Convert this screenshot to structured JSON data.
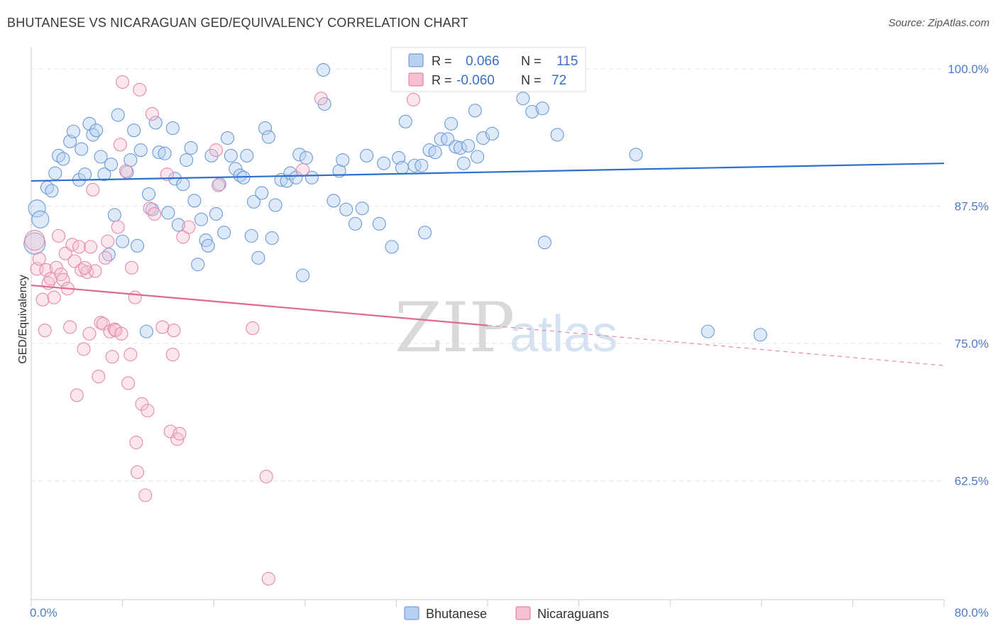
{
  "title": "BHUTANESE VS NICARAGUAN GED/EQUIVALENCY CORRELATION CHART",
  "source": "Source: ZipAtlas.com",
  "watermark": {
    "zip": "ZIP",
    "atlas": "atlas"
  },
  "colors": {
    "blue": "#5b8fd6",
    "blue_fill": "#b9d0f0",
    "pink": "#e07096",
    "pink_fill": "#f6c0d2"
  },
  "legend": {
    "rows": [
      {
        "r_label": "R =",
        "r_value": "0.066",
        "n_label": "N =",
        "n_value": "115"
      },
      {
        "r_label": "R =",
        "r_value": "-0.060",
        "n_label": "N =",
        "n_value": "72"
      }
    ],
    "bottom": [
      "Bhutanese",
      "Nicaraguans"
    ]
  },
  "chart_data": {
    "type": "scatter",
    "title": "BHUTANESE VS NICARAGUAN GED/EQUIVALENCY CORRELATION CHART",
    "xlabel": "",
    "ylabel": "GED/Equivalency",
    "xlim": [
      0,
      80
    ],
    "ylim": [
      51.7,
      102
    ],
    "x_tick_labels": [
      "0.0%",
      "80.0%"
    ],
    "y_ticks": [
      62.5,
      75.0,
      87.5,
      100.0
    ],
    "y_tick_labels": [
      "62.5%",
      "75.0%",
      "87.5%",
      "100.0%"
    ],
    "grid": true,
    "legend_position": "top-center",
    "series": [
      {
        "name": "Bhutanese",
        "r": 0.066,
        "n": 115,
        "trend": {
          "x": [
            0,
            80
          ],
          "y": [
            89.8,
            91.4
          ]
        },
        "points": [
          [
            0.3,
            84.1
          ],
          [
            0.5,
            87.3
          ],
          [
            0.8,
            86.3
          ],
          [
            1.4,
            89.2
          ],
          [
            1.8,
            88.9
          ],
          [
            2.1,
            90.5
          ],
          [
            2.4,
            92.1
          ],
          [
            2.8,
            91.8
          ],
          [
            3.4,
            93.4
          ],
          [
            3.7,
            94.3
          ],
          [
            4.2,
            89.9
          ],
          [
            4.4,
            92.7
          ],
          [
            4.7,
            90.4
          ],
          [
            5.1,
            95.0
          ],
          [
            5.4,
            94.0
          ],
          [
            5.7,
            94.4
          ],
          [
            6.1,
            92.0
          ],
          [
            6.4,
            90.4
          ],
          [
            6.8,
            83.1
          ],
          [
            7.0,
            91.3
          ],
          [
            7.3,
            86.7
          ],
          [
            7.6,
            95.8
          ],
          [
            8.0,
            84.3
          ],
          [
            8.4,
            90.6
          ],
          [
            8.7,
            91.7
          ],
          [
            9.0,
            94.4
          ],
          [
            9.3,
            83.9
          ],
          [
            9.6,
            92.6
          ],
          [
            10.1,
            76.1
          ],
          [
            10.3,
            88.6
          ],
          [
            10.6,
            87.2
          ],
          [
            10.9,
            95.1
          ],
          [
            11.2,
            92.4
          ],
          [
            11.7,
            92.3
          ],
          [
            12.0,
            86.9
          ],
          [
            12.4,
            94.6
          ],
          [
            12.6,
            90.0
          ],
          [
            12.9,
            85.8
          ],
          [
            13.3,
            89.5
          ],
          [
            13.6,
            91.7
          ],
          [
            14.0,
            92.8
          ],
          [
            14.3,
            88.0
          ],
          [
            14.6,
            82.2
          ],
          [
            14.9,
            86.3
          ],
          [
            15.3,
            84.4
          ],
          [
            15.5,
            83.9
          ],
          [
            15.8,
            92.1
          ],
          [
            16.2,
            86.8
          ],
          [
            16.5,
            89.5
          ],
          [
            16.9,
            85.1
          ],
          [
            17.2,
            93.7
          ],
          [
            17.5,
            92.1
          ],
          [
            17.9,
            90.9
          ],
          [
            18.3,
            90.3
          ],
          [
            18.6,
            90.1
          ],
          [
            18.9,
            92.1
          ],
          [
            19.3,
            84.8
          ],
          [
            19.5,
            87.9
          ],
          [
            19.9,
            82.8
          ],
          [
            20.2,
            88.7
          ],
          [
            20.5,
            94.6
          ],
          [
            20.8,
            93.8
          ],
          [
            21.1,
            84.6
          ],
          [
            21.4,
            87.6
          ],
          [
            21.9,
            89.9
          ],
          [
            22.4,
            89.8
          ],
          [
            22.7,
            90.5
          ],
          [
            23.2,
            90.1
          ],
          [
            23.5,
            92.2
          ],
          [
            23.8,
            81.2
          ],
          [
            24.1,
            91.9
          ],
          [
            24.6,
            90.1
          ],
          [
            25.6,
            99.9
          ],
          [
            25.7,
            96.8
          ],
          [
            26.5,
            88.0
          ],
          [
            27.0,
            90.7
          ],
          [
            27.3,
            91.7
          ],
          [
            27.6,
            87.2
          ],
          [
            28.4,
            85.9
          ],
          [
            29.0,
            87.3
          ],
          [
            29.4,
            92.1
          ],
          [
            30.5,
            85.9
          ],
          [
            30.9,
            91.4
          ],
          [
            31.6,
            83.8
          ],
          [
            32.2,
            91.9
          ],
          [
            32.5,
            91.0
          ],
          [
            32.8,
            95.2
          ],
          [
            33.6,
            91.2
          ],
          [
            34.2,
            91.2
          ],
          [
            34.5,
            85.1
          ],
          [
            34.9,
            92.6
          ],
          [
            35.4,
            92.4
          ],
          [
            35.9,
            93.6
          ],
          [
            36.5,
            93.6
          ],
          [
            36.8,
            95.0
          ],
          [
            37.2,
            92.9
          ],
          [
            37.6,
            92.8
          ],
          [
            37.9,
            91.4
          ],
          [
            38.3,
            93.0
          ],
          [
            38.9,
            96.2
          ],
          [
            39.1,
            92.0
          ],
          [
            39.6,
            93.7
          ],
          [
            40.4,
            94.1
          ],
          [
            43.1,
            97.3
          ],
          [
            43.4,
            100.1
          ],
          [
            43.9,
            96.1
          ],
          [
            44.8,
            96.4
          ],
          [
            45.0,
            84.2
          ],
          [
            46.1,
            94.0
          ],
          [
            53.0,
            92.2
          ],
          [
            59.3,
            76.1
          ],
          [
            63.9,
            75.8
          ]
        ]
      },
      {
        "name": "Nicaraguans",
        "r": -0.06,
        "n": 72,
        "trend": {
          "x": [
            0,
            80
          ],
          "y": [
            80.3,
            73.0
          ]
        },
        "trend_solid_until_x": 40,
        "points": [
          [
            0.3,
            84.4
          ],
          [
            0.5,
            81.8
          ],
          [
            0.7,
            82.7
          ],
          [
            1.0,
            79.0
          ],
          [
            1.2,
            76.2
          ],
          [
            1.3,
            81.7
          ],
          [
            1.5,
            80.5
          ],
          [
            1.7,
            80.9
          ],
          [
            2.0,
            79.2
          ],
          [
            2.2,
            81.9
          ],
          [
            2.4,
            84.8
          ],
          [
            2.6,
            81.3
          ],
          [
            2.8,
            80.8
          ],
          [
            3.0,
            83.2
          ],
          [
            3.2,
            80.0
          ],
          [
            3.4,
            76.5
          ],
          [
            3.6,
            84.0
          ],
          [
            3.8,
            82.5
          ],
          [
            4.0,
            70.3
          ],
          [
            4.2,
            83.8
          ],
          [
            4.4,
            81.7
          ],
          [
            4.6,
            74.5
          ],
          [
            4.9,
            81.5
          ],
          [
            5.1,
            75.9
          ],
          [
            5.2,
            83.8
          ],
          [
            5.4,
            89.0
          ],
          [
            5.6,
            81.6
          ],
          [
            5.9,
            72.0
          ],
          [
            6.1,
            76.9
          ],
          [
            6.3,
            76.8
          ],
          [
            6.5,
            82.8
          ],
          [
            6.7,
            84.3
          ],
          [
            6.9,
            76.1
          ],
          [
            7.1,
            73.8
          ],
          [
            7.3,
            76.3
          ],
          [
            7.4,
            76.2
          ],
          [
            7.6,
            85.6
          ],
          [
            7.8,
            93.1
          ],
          [
            8.0,
            98.8
          ],
          [
            8.3,
            90.7
          ],
          [
            8.5,
            71.4
          ],
          [
            8.7,
            74.0
          ],
          [
            8.8,
            81.9
          ],
          [
            9.1,
            79.2
          ],
          [
            9.2,
            66.0
          ],
          [
            9.3,
            63.3
          ],
          [
            9.5,
            98.1
          ],
          [
            9.7,
            69.5
          ],
          [
            10.0,
            61.2
          ],
          [
            10.2,
            68.9
          ],
          [
            10.4,
            87.3
          ],
          [
            10.6,
            95.9
          ],
          [
            10.8,
            86.8
          ],
          [
            11.5,
            76.5
          ],
          [
            12.2,
            67.0
          ],
          [
            12.4,
            74.0
          ],
          [
            12.5,
            76.2
          ],
          [
            12.8,
            66.3
          ],
          [
            13.0,
            66.8
          ],
          [
            13.3,
            84.7
          ],
          [
            13.8,
            85.6
          ],
          [
            16.2,
            92.6
          ],
          [
            16.4,
            89.4
          ],
          [
            19.4,
            76.4
          ],
          [
            20.6,
            62.9
          ],
          [
            20.8,
            53.6
          ],
          [
            23.8,
            90.8
          ],
          [
            25.4,
            97.3
          ],
          [
            33.5,
            97.2
          ],
          [
            7.9,
            75.9
          ],
          [
            4.7,
            81.9
          ],
          [
            11.9,
            90.4
          ]
        ]
      }
    ]
  }
}
